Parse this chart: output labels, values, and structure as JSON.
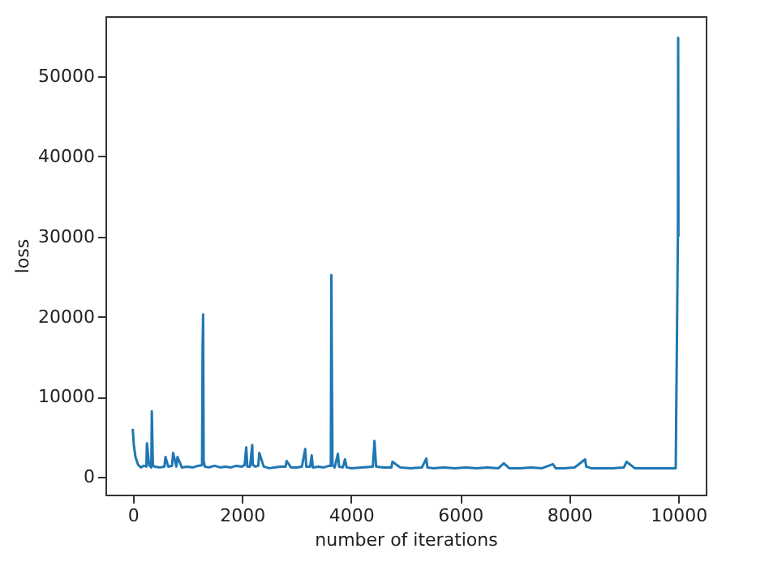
{
  "chart_data": {
    "type": "line",
    "xlabel": "number of iterations",
    "ylabel": "loss",
    "x": [
      0,
      20,
      50,
      100,
      150,
      200,
      250,
      260,
      300,
      340,
      350,
      370,
      400,
      500,
      580,
      600,
      650,
      720,
      740,
      800,
      820,
      900,
      1000,
      1100,
      1200,
      1270,
      1280,
      1290,
      1300,
      1320,
      1400,
      1500,
      1600,
      1700,
      1800,
      1900,
      2000,
      2050,
      2080,
      2100,
      2150,
      2190,
      2200,
      2250,
      2300,
      2320,
      2400,
      2500,
      2600,
      2700,
      2800,
      2820,
      2900,
      3000,
      3100,
      3160,
      3180,
      3250,
      3280,
      3300,
      3400,
      3500,
      3600,
      3630,
      3640,
      3660,
      3700,
      3760,
      3780,
      3850,
      3890,
      3920,
      4000,
      4200,
      4400,
      4430,
      4460,
      4600,
      4740,
      4760,
      4900,
      5100,
      5300,
      5380,
      5400,
      5500,
      5700,
      5900,
      6100,
      6300,
      6500,
      6700,
      6800,
      6900,
      7100,
      7300,
      7500,
      7700,
      7750,
      7900,
      8100,
      8290,
      8310,
      8400,
      8600,
      8800,
      9000,
      9050,
      9200,
      9400,
      9600,
      9800,
      9950,
      9990,
      9995,
      10000
    ],
    "series": [
      {
        "color": "#1f77b4",
        "values": [
          6000,
          4000,
          2500,
          1500,
          1200,
          1400,
          1300,
          4200,
          1500,
          1200,
          8200,
          1400,
          1300,
          1200,
          1300,
          2500,
          1300,
          1400,
          3000,
          1300,
          2500,
          1200,
          1300,
          1200,
          1400,
          1500,
          16000,
          20300,
          2000,
          1300,
          1200,
          1400,
          1200,
          1300,
          1200,
          1400,
          1300,
          1500,
          3700,
          1300,
          1300,
          4000,
          1500,
          1300,
          1400,
          3000,
          1300,
          1100,
          1200,
          1300,
          1300,
          2000,
          1200,
          1200,
          1300,
          3500,
          1300,
          1300,
          2700,
          1200,
          1300,
          1200,
          1400,
          1400,
          25200,
          1500,
          1200,
          2900,
          1300,
          1200,
          2200,
          1200,
          1100,
          1200,
          1300,
          4500,
          1300,
          1200,
          1200,
          1900,
          1200,
          1100,
          1200,
          2300,
          1200,
          1100,
          1200,
          1100,
          1200,
          1100,
          1200,
          1100,
          1700,
          1100,
          1100,
          1200,
          1100,
          1600,
          1100,
          1100,
          1200,
          2200,
          1300,
          1100,
          1100,
          1100,
          1200,
          1900,
          1100,
          1100,
          1100,
          1100,
          1100,
          30000,
          54800,
          30000
        ]
      }
    ],
    "xlim": [
      -500,
      10500
    ],
    "ylim": [
      -2200,
      57500
    ],
    "xticks": [
      0,
      2000,
      4000,
      6000,
      8000,
      10000
    ],
    "yticks": [
      0,
      10000,
      20000,
      30000,
      40000,
      50000
    ],
    "grid": false,
    "legend": false,
    "marker": "none",
    "line_style": "solid"
  }
}
